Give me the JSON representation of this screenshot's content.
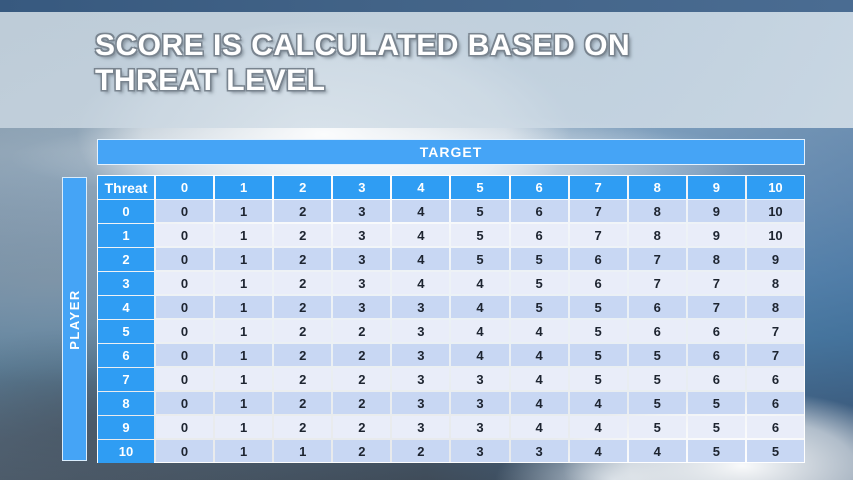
{
  "title": {
    "line1": "SCORE IS CALCULATED BASED ON",
    "line2": "THREAT LEVEL"
  },
  "table": {
    "target_label": "TARGET",
    "player_label": "PLAYER",
    "corner_label": "Threat",
    "column_headers": [
      "0",
      "1",
      "2",
      "3",
      "4",
      "5",
      "6",
      "7",
      "8",
      "9",
      "10"
    ],
    "rows": [
      {
        "threat": "0",
        "values": [
          0,
          1,
          2,
          3,
          4,
          5,
          6,
          7,
          8,
          9,
          10
        ]
      },
      {
        "threat": "1",
        "values": [
          0,
          1,
          2,
          3,
          4,
          5,
          6,
          7,
          8,
          9,
          10
        ]
      },
      {
        "threat": "2",
        "values": [
          0,
          1,
          2,
          3,
          4,
          5,
          5,
          6,
          7,
          8,
          9
        ]
      },
      {
        "threat": "3",
        "values": [
          0,
          1,
          2,
          3,
          4,
          4,
          5,
          6,
          7,
          7,
          8
        ]
      },
      {
        "threat": "4",
        "values": [
          0,
          1,
          2,
          3,
          3,
          4,
          5,
          5,
          6,
          7,
          8
        ]
      },
      {
        "threat": "5",
        "values": [
          0,
          1,
          2,
          2,
          3,
          4,
          4,
          5,
          6,
          6,
          7
        ]
      },
      {
        "threat": "6",
        "values": [
          0,
          1,
          2,
          2,
          3,
          4,
          4,
          5,
          5,
          6,
          7
        ]
      },
      {
        "threat": "7",
        "values": [
          0,
          1,
          2,
          2,
          3,
          3,
          4,
          5,
          5,
          6,
          6
        ]
      },
      {
        "threat": "8",
        "values": [
          0,
          1,
          2,
          2,
          3,
          3,
          4,
          4,
          5,
          5,
          6
        ]
      },
      {
        "threat": "9",
        "values": [
          0,
          1,
          2,
          2,
          3,
          3,
          4,
          4,
          5,
          5,
          6
        ]
      },
      {
        "threat": "10",
        "values": [
          0,
          1,
          1,
          2,
          2,
          3,
          3,
          4,
          4,
          5,
          5
        ]
      }
    ]
  },
  "colors": {
    "accent_blue": "#2f9df3",
    "bar_blue": "#45a4f6",
    "row_even": "#c8d7f3",
    "row_odd": "#e9edf9"
  }
}
